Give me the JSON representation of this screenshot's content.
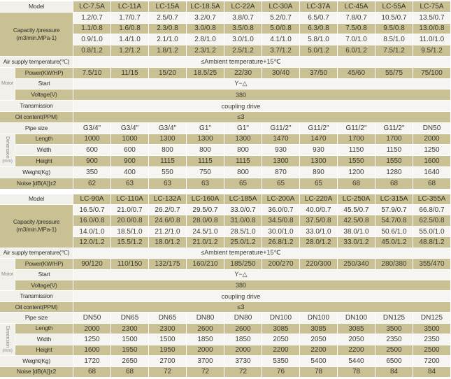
{
  "colors": {
    "row_tan": "#c9c094",
    "row_light": "#f6f5f1",
    "label_light": "#f1f0eb",
    "text": "#3b3b33",
    "group_text": "#8d8d85"
  },
  "shared": {
    "ambient": "≤Ambient temperature+15℃",
    "start_mode": "Y−△",
    "voltage": "380",
    "transmission": "coupling drive",
    "oil": "≤3"
  },
  "tables": [
    {
      "id": "spec-table-small-models",
      "rows": [
        {
          "header": true,
          "label": {
            "text": "Model"
          },
          "cells": [
            "LC-7.5A",
            "LC-11A",
            "LC-15A",
            "LC-18.5A",
            "LC-22A",
            "LC-30A",
            "LC-37A",
            "LC-45A",
            "LC-55A",
            "LC-75A"
          ]
        },
        {
          "label": {
            "text": "Capacity /pressure",
            "text2": "(m3/min.MPa-1)",
            "span": 4
          },
          "cells": [
            "1.2/0.7",
            "1.7/0.7",
            "2.5/0.7",
            "3.2/0.7",
            "3.8/0.7",
            "5.2/0.7",
            "6.5/0.7",
            "7.8/0.7",
            "10.5/0.7",
            "13.5/0.7"
          ]
        },
        {
          "cells": [
            "1.1/0.8",
            "1.6/0.8",
            "2.3/0.8",
            "3.0/0.8",
            "3.5/0.8",
            "5.0/0.8",
            "6.3/0.8",
            "7.5/0.8",
            "9.5/0.8",
            "13.0/0.8"
          ]
        },
        {
          "cells": [
            "0.9/1.0",
            "1.4/1.0",
            "2.1/1.0",
            "2.8/1.0",
            "3.0/1.0",
            "4.1/1.0",
            "5.8/1.0",
            "7.0/1.0",
            "8.5/1.0",
            "11.0/1.0"
          ]
        },
        {
          "cells": [
            "0.8/1.2",
            "1.2/1.2",
            "1.8/1.2",
            "2.3/1.2",
            "2.5/1.2",
            "3.7/1.2",
            "5.0/1.2",
            "6.0/1.2",
            "7.5/1.2",
            "9.5/1.2"
          ]
        },
        {
          "label": {
            "text": "Air supply temperature(℃)"
          },
          "merged": "≤Ambient temperature+15℃"
        },
        {
          "group": {
            "text": "Motor",
            "span": 3
          },
          "label": {
            "text": "Power(KW/HP)",
            "sub": true
          },
          "cells": [
            "7.5/10",
            "11/15",
            "15/20",
            "18.5/25",
            "22/30",
            "30/40",
            "37/50",
            "45/60",
            "55/75",
            "75/100"
          ]
        },
        {
          "label": {
            "text": "Start",
            "sub": true
          },
          "merged": "Y−△"
        },
        {
          "label": {
            "text": "Voltage(V)",
            "sub": true
          },
          "merged": "380"
        },
        {
          "label": {
            "text": "Transmission"
          },
          "merged": "coupling drive"
        },
        {
          "label": {
            "text": "Oil content(PPM)"
          },
          "merged": "≤3"
        },
        {
          "label": {
            "text": "Pipe size"
          },
          "cells": [
            "G3/4\"",
            "G3/4\"",
            "G3/4\"",
            "G1\"",
            "G1\"",
            "G11/2\"",
            "G11/2\"",
            "G11/2\"",
            "G11/2\"",
            "DN50"
          ]
        },
        {
          "group": {
            "text": "Dimension",
            "sub": "(mm)",
            "span": 3,
            "vertical": true
          },
          "label": {
            "text": "Length",
            "sub": true
          },
          "cells": [
            "1000",
            "1000",
            "1300",
            "1300",
            "1300",
            "1470",
            "1470",
            "1700",
            "1700",
            "2000"
          ]
        },
        {
          "label": {
            "text": "Width",
            "sub": true
          },
          "cells": [
            "600",
            "600",
            "800",
            "800",
            "800",
            "930",
            "930",
            "1150",
            "1150",
            "1250"
          ]
        },
        {
          "label": {
            "text": "Height",
            "sub": true
          },
          "cells": [
            "900",
            "900",
            "1115",
            "1115",
            "1115",
            "1300",
            "1300",
            "1550",
            "1550",
            "1600"
          ]
        },
        {
          "label": {
            "text": "Weight(Kg)"
          },
          "cells": [
            "350",
            "400",
            "550",
            "750",
            "800",
            "870",
            "890",
            "1200",
            "1280",
            "1640"
          ]
        },
        {
          "label": {
            "text": "Noise [dB(A)]±2"
          },
          "cells": [
            "62",
            "63",
            "63",
            "63",
            "65",
            "65",
            "65",
            "68",
            "68",
            "68"
          ]
        }
      ]
    },
    {
      "id": "spec-table-large-models",
      "rows": [
        {
          "header": true,
          "label": {
            "text": "Model"
          },
          "cells": [
            "LC-90A",
            "LC-110A",
            "LC-132A",
            "LC-160A",
            "LC-185A",
            "LC-200A",
            "LC-220A",
            "LC-250A",
            "LC-315A",
            "LC-355A"
          ]
        },
        {
          "label": {
            "text": "Capacity /pressure",
            "text2": "(m3/min.MPa-1)",
            "span": 4
          },
          "cells": [
            "16.5/0.7",
            "21.0/0.7",
            "26.2/0.7",
            "29.5/0.7",
            "33.0/0.7",
            "36.0/0.7",
            "40.0/0.7",
            "45.5/0.7",
            "57.9/0.7",
            "66.8/0.7"
          ]
        },
        {
          "cells": [
            "16.0/0.8",
            "20.0/0.8",
            "24.6/0.8",
            "28.0/0.8",
            "31.0/0.8",
            "34.5/0.8",
            "37.5/0.8",
            "42.5/0.8",
            "54.7/0.8",
            "62.5/0.8"
          ]
        },
        {
          "cells": [
            "14.0/1.0",
            "18.5/1.0",
            "21.2/1.0",
            "24.5/1.0",
            "28.5/1.0",
            "30.0/1.0",
            "33.0/1.0",
            "38.0/1.0",
            "50.6/1.0",
            "55.0/1.0"
          ]
        },
        {
          "cells": [
            "12.0/1.2",
            "15.5/1.2",
            "18.0/1.2",
            "21.0/1.2",
            "25.0/1.2",
            "26.8/1.2",
            "28.0/1.2",
            "33.0/1.2",
            "45.0/1.2",
            "48.8/1.2"
          ]
        },
        {
          "label": {
            "text": "Air supply temperature(℃)"
          },
          "merged": "≤Ambient temperature+15℃"
        },
        {
          "group": {
            "text": "Motor",
            "span": 3
          },
          "label": {
            "text": "Power(KW/HP)",
            "sub": true
          },
          "cells": [
            "90/120",
            "110/150",
            "132/175",
            "160/210",
            "185/250",
            "200/270",
            "220/300",
            "250/340",
            "280/380",
            "355/470"
          ]
        },
        {
          "label": {
            "text": "Start",
            "sub": true
          },
          "merged": "Y−△"
        },
        {
          "label": {
            "text": "Voltage(V)",
            "sub": true
          },
          "merged": "380"
        },
        {
          "label": {
            "text": "Transmission"
          },
          "merged": "coupling drive"
        },
        {
          "label": {
            "text": "Oil content(PPM)"
          },
          "merged": "≤3"
        },
        {
          "label": {
            "text": "Pipe size"
          },
          "cells": [
            "DN50",
            "DN65",
            "DN65",
            "DN80",
            "DN80",
            "DN100",
            "DN100",
            "DN100",
            "DN125",
            "DN125"
          ]
        },
        {
          "group": {
            "text": "Dimension",
            "sub": "(mm)",
            "span": 3,
            "vertical": true
          },
          "label": {
            "text": "Length",
            "sub": true
          },
          "cells": [
            "2000",
            "2300",
            "2300",
            "2600",
            "2600",
            "3085",
            "3085",
            "3085",
            "3500",
            "3500"
          ]
        },
        {
          "label": {
            "text": "Width",
            "sub": true
          },
          "cells": [
            "1250",
            "1500",
            "1500",
            "1850",
            "1850",
            "2050",
            "2050",
            "2050",
            "2350",
            "2350"
          ]
        },
        {
          "label": {
            "text": "Height",
            "sub": true
          },
          "cells": [
            "1600",
            "1950",
            "1950",
            "2000",
            "2000",
            "2200",
            "2200",
            "2200",
            "2500",
            "2500"
          ]
        },
        {
          "label": {
            "text": "Weight(Kg)"
          },
          "cells": [
            "1720",
            "2650",
            "2700",
            "3700",
            "3730",
            "5350",
            "5400",
            "5440",
            "6500",
            "7200"
          ]
        },
        {
          "label": {
            "text": "Noise [dB(A)]±2"
          },
          "cells": [
            "68",
            "68",
            "72",
            "72",
            "72",
            "76",
            "78",
            "78",
            "84",
            "84"
          ]
        }
      ]
    }
  ]
}
